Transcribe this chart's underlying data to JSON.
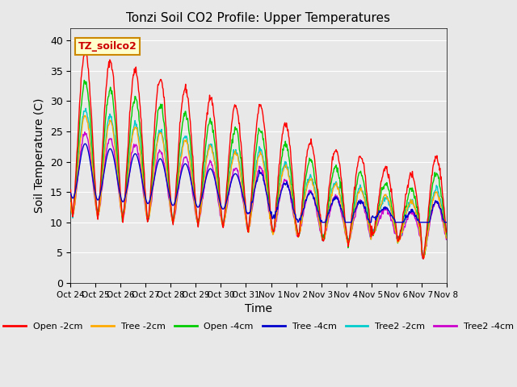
{
  "title": "Tonzi Soil CO2 Profile: Upper Temperatures",
  "xlabel": "Time",
  "ylabel": "Soil Temperature (C)",
  "ylim": [
    0,
    42
  ],
  "yticks": [
    0,
    5,
    10,
    15,
    20,
    25,
    30,
    35,
    40
  ],
  "background_color": "#e8e8e8",
  "plot_bg_color": "#e8e8e8",
  "watermark": "TZ_soilco2",
  "series_colors": {
    "Open -2cm": "#ff0000",
    "Tree -2cm": "#ffaa00",
    "Open -4cm": "#00cc00",
    "Tree -4cm": "#0000cc",
    "Tree2 -2cm": "#00cccc",
    "Tree2 -4cm": "#cc00cc"
  },
  "x_tick_labels": [
    "Oct 24",
    "Oct 25",
    "Oct 26",
    "Oct 27",
    "Oct 28",
    "Oct 29",
    "Oct 30",
    "Oct 31",
    "Nov 1",
    "Nov 2",
    "Nov 3",
    "Nov 4",
    "Nov 5",
    "Nov 6",
    "Nov 7",
    "Nov 8"
  ],
  "num_days": 15,
  "points_per_day": 48
}
